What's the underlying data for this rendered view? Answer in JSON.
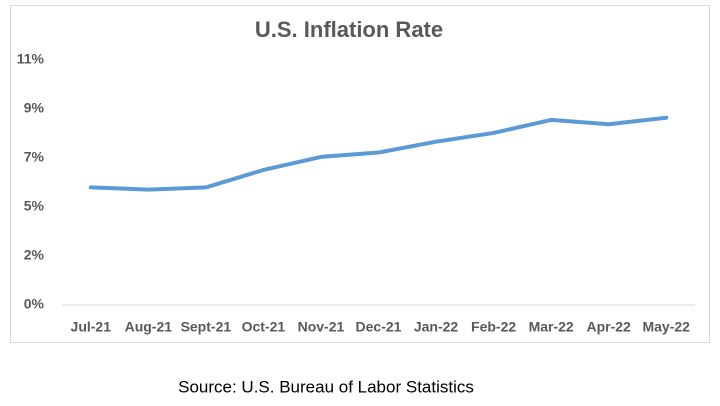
{
  "chart_data": {
    "type": "line",
    "title": "U.S. Inflation Rate",
    "categories": [
      "Jul-21",
      "Aug-21",
      "Sept-21",
      "Oct-21",
      "Nov-21",
      "Dec-21",
      "Jan-22",
      "Feb-22",
      "Mar-22",
      "Apr-22",
      "May-22"
    ],
    "series": [
      {
        "name": "Inflation Rate",
        "color": "#5b9bd5",
        "values": [
          5.4,
          5.3,
          5.4,
          6.2,
          6.8,
          7.0,
          7.5,
          7.9,
          8.5,
          8.3,
          8.6
        ]
      }
    ],
    "ylim": [
      0,
      11.25
    ],
    "yticks": [
      {
        "value": 0,
        "label": "0%"
      },
      {
        "value": 2.25,
        "label": "2%"
      },
      {
        "value": 4.5,
        "label": "5%"
      },
      {
        "value": 6.75,
        "label": "7%"
      },
      {
        "value": 9,
        "label": "9%"
      },
      {
        "value": 11.25,
        "label": "11%"
      }
    ],
    "grid": false,
    "legend": false,
    "source": "Source: U.S. Bureau of Labor Statistics"
  }
}
